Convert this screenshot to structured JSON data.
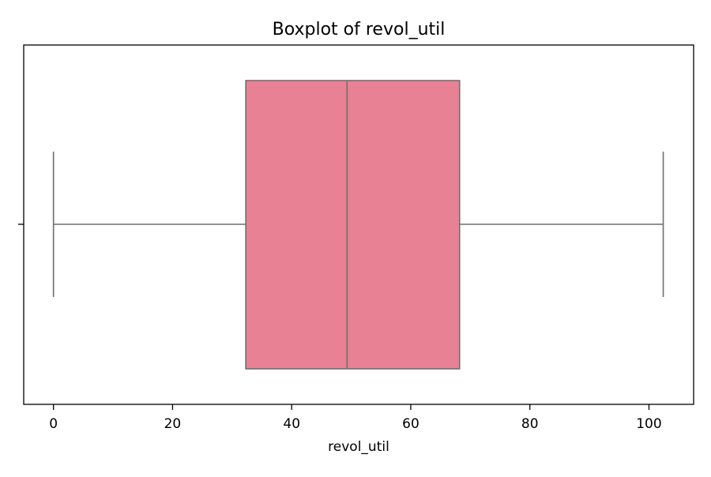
{
  "chart_data": {
    "type": "boxplot",
    "title": "Boxplot of revol_util",
    "xlabel": "revol_util",
    "ylabel": "",
    "xlim": [
      -5,
      107.5
    ],
    "x_ticks": [
      0,
      20,
      40,
      60,
      80,
      100
    ],
    "x_tick_labels": [
      "0",
      "20",
      "40",
      "60",
      "80",
      "100"
    ],
    "orientation": "horizontal",
    "grid": false,
    "box": {
      "whisker_low": 0,
      "q1": 32.3,
      "median": 49.3,
      "q3": 68.2,
      "whisker_high": 102.4
    },
    "colors": {
      "box_fill": "#e88193",
      "lines": "#6e6e6e",
      "frame": "#000000"
    }
  }
}
